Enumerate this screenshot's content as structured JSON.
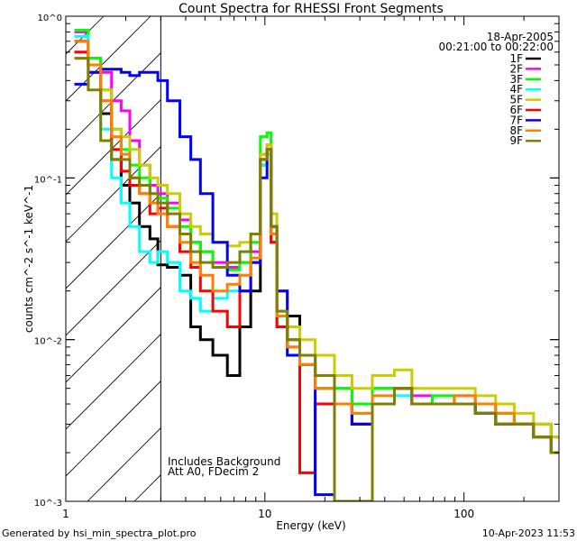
{
  "chart_data": {
    "type": "line",
    "title": "Count Spectra for RHESSI Front Segments",
    "xlabel": "Energy (keV)",
    "ylabel": "counts cm^-2 s^-1 keV^-1",
    "xscale": "log",
    "yscale": "log",
    "xlim": [
      1,
      300
    ],
    "ylim": [
      0.001,
      1
    ],
    "xticks": [
      {
        "v": 1,
        "label": "1"
      },
      {
        "v": 10,
        "label": "10"
      },
      {
        "v": 100,
        "label": "100"
      }
    ],
    "yticks": [
      {
        "v": 0.001,
        "label": "10^-3"
      },
      {
        "v": 0.01,
        "label": "10^-2"
      },
      {
        "v": 0.1,
        "label": "10^-1"
      },
      {
        "v": 1,
        "label": "10^0"
      }
    ],
    "hatched_region": [
      1,
      3
    ],
    "date": "18-Apr-2005",
    "time_range": "00:21:00 to 00:22:00",
    "annotations": [
      "Includes Background",
      "Att A0, FDecim 2"
    ],
    "footer_left": "Generated by hsi_min_spectra_plot.pro",
    "footer_right": "10-Apr-2023 11:53",
    "legend_position": "top-right",
    "x": [
      1.2,
      1.4,
      1.6,
      1.8,
      2.0,
      2.2,
      2.5,
      2.8,
      3.0,
      3.5,
      4,
      4.5,
      5,
      6,
      7,
      8,
      9,
      10,
      10.5,
      11,
      12,
      14,
      16,
      20,
      25,
      30,
      40,
      50,
      60,
      80,
      100,
      130,
      160,
      200,
      250,
      300
    ],
    "series": [
      {
        "name": "1F",
        "color": "#000000",
        "values": [
          0.7,
          0.5,
          0.25,
          0.13,
          0.09,
          0.07,
          0.05,
          0.042,
          0.029,
          0.028,
          0.025,
          0.012,
          0.01,
          0.008,
          0.006,
          0.012,
          0.02,
          0.12,
          0.15,
          0.04,
          0.012,
          0.014,
          0.008,
          0.005,
          0.004,
          0.003,
          0.004,
          0.005,
          0.004,
          0.004,
          0.004,
          0.0035,
          0.003,
          0.003,
          0.0025,
          0.002
        ]
      },
      {
        "name": "2F",
        "color": "#ff00ff",
        "values": [
          0.8,
          0.55,
          0.45,
          0.3,
          0.26,
          0.17,
          0.12,
          0.09,
          0.08,
          0.07,
          0.055,
          0.04,
          0.035,
          0.03,
          0.028,
          0.03,
          0.035,
          0.14,
          0.16,
          0.05,
          0.02,
          0.01,
          0.008,
          0.006,
          0.005,
          0.004,
          0.005,
          0.005,
          0.0045,
          0.004,
          0.0045,
          0.004,
          0.0035,
          0.003,
          0.003,
          0.0025
        ]
      },
      {
        "name": "3F",
        "color": "#00ff00",
        "values": [
          0.82,
          0.55,
          0.35,
          0.2,
          0.15,
          0.12,
          0.1,
          0.08,
          0.075,
          0.065,
          0.05,
          0.04,
          0.035,
          0.028,
          0.027,
          0.03,
          0.04,
          0.18,
          0.19,
          0.05,
          0.015,
          0.01,
          0.008,
          0.005,
          0.005,
          0.004,
          0.005,
          0.005,
          0.004,
          0.0045,
          0.004,
          0.004,
          0.0035,
          0.003,
          0.003,
          0.0025
        ]
      },
      {
        "name": "4F",
        "color": "#00ffff",
        "values": [
          0.75,
          0.5,
          0.2,
          0.1,
          0.07,
          0.05,
          0.035,
          0.03,
          0.035,
          0.03,
          0.02,
          0.018,
          0.015,
          0.018,
          0.02,
          0.025,
          0.03,
          0.12,
          0.14,
          0.04,
          0.012,
          0.008,
          0.007,
          0.005,
          0.004,
          0.0035,
          0.004,
          0.0045,
          0.004,
          0.004,
          0.004,
          0.0035,
          0.003,
          0.003,
          0.0025,
          0.002
        ]
      },
      {
        "name": "5F",
        "color": "#cccc00",
        "values": [
          0.55,
          0.5,
          0.35,
          0.2,
          0.18,
          0.15,
          0.12,
          0.1,
          0.09,
          0.08,
          0.06,
          0.05,
          0.045,
          0.04,
          0.038,
          0.04,
          0.045,
          0.14,
          0.16,
          0.06,
          0.02,
          0.012,
          0.01,
          0.008,
          0.006,
          0.005,
          0.006,
          0.0065,
          0.005,
          0.005,
          0.005,
          0.0045,
          0.004,
          0.0035,
          0.003,
          0.0025
        ]
      },
      {
        "name": "6F",
        "color": "#ff0000",
        "values": [
          0.6,
          0.45,
          0.3,
          0.15,
          0.11,
          0.09,
          0.08,
          0.06,
          0.065,
          0.05,
          0.035,
          0.028,
          0.02,
          0.015,
          0.012,
          0.02,
          0.03,
          0.13,
          0.15,
          0.04,
          0.012,
          0.009,
          0.0015,
          0.004,
          0.004,
          0.003,
          0.004,
          0.005,
          0.004,
          0.004,
          0.004,
          0.0035,
          0.003,
          0.003,
          0.0025,
          0.002
        ]
      },
      {
        "name": "7F",
        "color": "#0000ff",
        "values": [
          0.38,
          0.45,
          0.47,
          0.47,
          0.45,
          0.43,
          0.45,
          0.45,
          0.4,
          0.3,
          0.18,
          0.13,
          0.08,
          0.04,
          0.025,
          0.02,
          0.03,
          0.1,
          0.15,
          0.05,
          0.02,
          0.008,
          0.007,
          0.0011,
          0.004,
          0.003,
          0.004,
          0.005,
          0.004,
          0.004,
          0.004,
          0.0035,
          0.003,
          0.003,
          0.0025,
          0.002
        ]
      },
      {
        "name": "8F",
        "color": "#ff8000",
        "values": [
          0.7,
          0.5,
          0.3,
          0.18,
          0.14,
          0.1,
          0.08,
          0.07,
          0.06,
          0.05,
          0.04,
          0.03,
          0.025,
          0.02,
          0.022,
          0.025,
          0.032,
          0.13,
          0.15,
          0.045,
          0.014,
          0.009,
          0.007,
          0.005,
          0.004,
          0.0035,
          0.0045,
          0.005,
          0.004,
          0.004,
          0.0045,
          0.004,
          0.0035,
          0.003,
          0.0025,
          0.002
        ]
      },
      {
        "name": "9F",
        "color": "#808000",
        "values": [
          0.55,
          0.35,
          0.17,
          0.13,
          0.13,
          0.1,
          0.09,
          0.08,
          0.07,
          0.06,
          0.045,
          0.035,
          0.03,
          0.028,
          0.03,
          0.035,
          0.045,
          0.13,
          0.15,
          0.05,
          0.015,
          0.01,
          0.008,
          0.006,
          0.001,
          0.001,
          0.004,
          0.005,
          0.004,
          0.004,
          0.004,
          0.0035,
          0.003,
          0.003,
          0.0025,
          0.002
        ]
      }
    ]
  }
}
